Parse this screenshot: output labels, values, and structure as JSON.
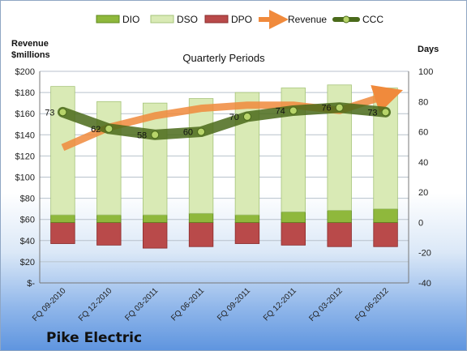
{
  "company": "Pike Electric",
  "chart_data": {
    "type": "bar",
    "title": "Quarterly Periods",
    "left_axis_label_line1": "Revenue",
    "left_axis_label_line2": "$millions",
    "right_axis_label": "Days",
    "categories": [
      "FQ 09-2010",
      "FQ 12-2010",
      "FQ 03-2011",
      "FQ 06-2011",
      "FQ 09-2011",
      "FQ 12-2011",
      "FQ 03-2012",
      "FQ 06-2012"
    ],
    "left_ylim": [
      0,
      200
    ],
    "left_ticks": [
      "$-",
      "$20",
      "$40",
      "$60",
      "$80",
      "$100",
      "$120",
      "$140",
      "$160",
      "$180",
      "$200"
    ],
    "right_ylim": [
      -40,
      100
    ],
    "right_ticks": [
      "-40",
      "-20",
      "0",
      "20",
      "40",
      "60",
      "80",
      "100"
    ],
    "legend_position": "top",
    "legend": [
      "DIO",
      "DSO",
      "DPO",
      "Revenue",
      "CCC"
    ],
    "series": [
      {
        "name": "DIO",
        "axis": "right",
        "kind": "stacked-bar",
        "color": "#8fb83c",
        "values": [
          5,
          5,
          5,
          6,
          5,
          7,
          8,
          9
        ]
      },
      {
        "name": "DSO",
        "axis": "right",
        "kind": "stacked-bar",
        "color": "#d9eab5",
        "values": [
          85,
          75,
          74,
          76,
          81,
          82,
          83,
          80
        ]
      },
      {
        "name": "DPO",
        "axis": "right",
        "kind": "bar-below-zero",
        "color": "#b94a4a",
        "values": [
          -14,
          -15,
          -17,
          -16,
          -14,
          -15,
          -16,
          -16
        ]
      },
      {
        "name": "Revenue",
        "axis": "left",
        "kind": "arrow-line",
        "color": "#f08a3c",
        "values": [
          128,
          147,
          158,
          165,
          168,
          168,
          163,
          177
        ]
      },
      {
        "name": "CCC",
        "axis": "right",
        "kind": "line",
        "color": "#4a6a1a",
        "values": [
          73,
          62,
          58,
          60,
          70,
          74,
          76,
          73
        ],
        "labels": [
          "73",
          "62",
          "58",
          "60",
          "70",
          "74",
          "76",
          "73"
        ]
      }
    ]
  }
}
